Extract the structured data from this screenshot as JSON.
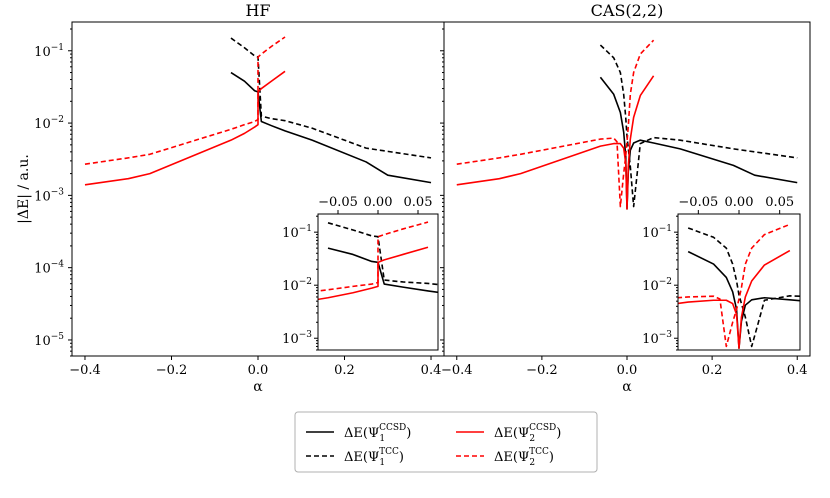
{
  "chart_data": {
    "type": "line",
    "ylabel": "|ΔE| / a.u.",
    "xlabel": "α",
    "yscale": "log",
    "ylim": [
      6e-06,
      0.25
    ],
    "xlim": [
      -0.43,
      0.43
    ],
    "xticks": [
      -0.4,
      -0.2,
      0.0,
      0.2,
      0.4
    ],
    "xtick_labels": [
      "−0.4",
      "−0.2",
      "0.0",
      "0.2",
      "0.4"
    ],
    "yticks": [
      1e-05,
      0.0001,
      0.001,
      0.01,
      0.1
    ],
    "ytick_labels": [
      "10",
      "10",
      "10",
      "10",
      "10"
    ],
    "ytick_exponents": [
      "−5",
      "−4",
      "−3",
      "−2",
      "−1"
    ],
    "inset": {
      "xlim": [
        -0.075,
        0.075
      ],
      "ylim": [
        0.0006,
        0.22
      ],
      "xticks": [
        -0.05,
        0.0,
        0.05
      ],
      "xtick_labels": [
        "−0.05",
        "0.00",
        "0.05"
      ],
      "yticks": [
        0.001,
        0.01,
        0.1
      ],
      "ytick_labels": [
        "10",
        "10",
        "10"
      ],
      "ytick_exponents": [
        "−3",
        "−2",
        "−1"
      ]
    },
    "legend": {
      "entries": [
        {
          "prefix": "ΔE(Ψ",
          "sub": "1",
          "sup": "CCSD",
          "suffix": ")",
          "color": "#000000",
          "dash": false
        },
        {
          "prefix": "ΔE(Ψ",
          "sub": "2",
          "sup": "CCSD",
          "suffix": ")",
          "color": "#ff0000",
          "dash": false
        },
        {
          "prefix": "ΔE(Ψ",
          "sub": "1",
          "sup": "TCC",
          "suffix": ")",
          "color": "#000000",
          "dash": true
        },
        {
          "prefix": "ΔE(Ψ",
          "sub": "2",
          "sup": "TCC",
          "suffix": ")",
          "color": "#ff0000",
          "dash": true
        }
      ]
    },
    "panels": [
      {
        "title": "HF",
        "series": [
          {
            "name": "ΔE(Ψ1 CCSD)",
            "color": "#000000",
            "dash": false,
            "x": [
              -0.0625,
              -0.03125,
              -0.0078,
              0.0,
              0.0078,
              0.03125,
              0.0625,
              0.0625,
              0.125,
              0.25,
              0.3,
              0.4
            ],
            "y": [
              0.05,
              0.038,
              0.028,
              0.027,
              0.0105,
              0.0092,
              0.0078,
              0.0078,
              0.0058,
              0.0029,
              0.0019,
              0.0015
            ]
          },
          {
            "name": "ΔE(Ψ1 TCC)",
            "color": "#000000",
            "dash": true,
            "x": [
              -0.0625,
              -0.03125,
              -0.0078,
              0.0,
              0.0078,
              0.03125,
              0.0625,
              0.125,
              0.25,
              0.4
            ],
            "y": [
              0.15,
              0.11,
              0.085,
              0.082,
              0.0125,
              0.0115,
              0.0108,
              0.0085,
              0.0045,
              0.0033
            ]
          },
          {
            "name": "ΔE(Ψ2 CCSD)",
            "color": "#ff0000",
            "dash": false,
            "x": [
              -0.4,
              -0.3,
              -0.25,
              -0.0625,
              -0.03125,
              -0.0078,
              0.0,
              0.0,
              0.0078,
              0.03125,
              0.0625
            ],
            "y": [
              0.0014,
              0.0017,
              0.002,
              0.0058,
              0.0072,
              0.0088,
              0.0095,
              0.027,
              0.03,
              0.038,
              0.052
            ]
          },
          {
            "name": "ΔE(Ψ2 TCC)",
            "color": "#ff0000",
            "dash": true,
            "x": [
              -0.4,
              -0.3,
              -0.25,
              -0.0625,
              -0.03125,
              -0.0078,
              0.0,
              0.0,
              0.0078,
              0.03125,
              0.0625
            ],
            "y": [
              0.0027,
              0.0033,
              0.0037,
              0.0082,
              0.0095,
              0.0105,
              0.0112,
              0.082,
              0.09,
              0.115,
              0.155
            ]
          }
        ]
      },
      {
        "title": "CAS(2,2)",
        "series": [
          {
            "name": "ΔE(Ψ1 CCSD)",
            "color": "#000000",
            "dash": false,
            "x": [
              -0.0625,
              -0.03125,
              -0.0156,
              -0.0078,
              -0.003,
              0.0,
              0.003,
              0.0078,
              0.0156,
              0.03125,
              0.0625,
              0.125,
              0.25,
              0.3,
              0.4
            ],
            "y": [
              0.043,
              0.025,
              0.014,
              0.0075,
              0.0035,
              0.00065,
              0.0021,
              0.0042,
              0.0053,
              0.0058,
              0.0053,
              0.0044,
              0.0026,
              0.0019,
              0.0015
            ]
          },
          {
            "name": "ΔE(Ψ1 TCC)",
            "color": "#000000",
            "dash": true,
            "x": [
              -0.0625,
              -0.03125,
              -0.0156,
              -0.0078,
              -0.003,
              0.0,
              0.0078,
              0.0156,
              0.0235,
              0.03125,
              0.0625,
              0.125,
              0.25,
              0.4
            ],
            "y": [
              0.12,
              0.08,
              0.05,
              0.025,
              0.012,
              0.0065,
              0.0025,
              0.0007,
              0.0019,
              0.0052,
              0.0063,
              0.0058,
              0.0044,
              0.0033
            ]
          },
          {
            "name": "ΔE(Ψ2 CCSD)",
            "color": "#ff0000",
            "dash": false,
            "x": [
              -0.4,
              -0.3,
              -0.25,
              -0.0625,
              -0.03125,
              -0.0156,
              -0.0078,
              -0.003,
              0.0,
              0.003,
              0.0078,
              0.0156,
              0.03125,
              0.0625
            ],
            "y": [
              0.0014,
              0.0017,
              0.002,
              0.0048,
              0.0052,
              0.0052,
              0.0045,
              0.0028,
              0.00065,
              0.0025,
              0.006,
              0.012,
              0.024,
              0.045
            ]
          },
          {
            "name": "ΔE(Ψ2 TCC)",
            "color": "#ff0000",
            "dash": true,
            "x": [
              -0.4,
              -0.3,
              -0.25,
              -0.0625,
              -0.03125,
              -0.0235,
              -0.0156,
              -0.0078,
              -0.003,
              0.0,
              0.003,
              0.0078,
              0.0156,
              0.03125,
              0.0625
            ],
            "y": [
              0.0027,
              0.0033,
              0.0037,
              0.006,
              0.0062,
              0.0055,
              0.0007,
              0.002,
              0.0035,
              0.0055,
              0.009,
              0.025,
              0.05,
              0.09,
              0.14
            ]
          }
        ]
      }
    ]
  }
}
